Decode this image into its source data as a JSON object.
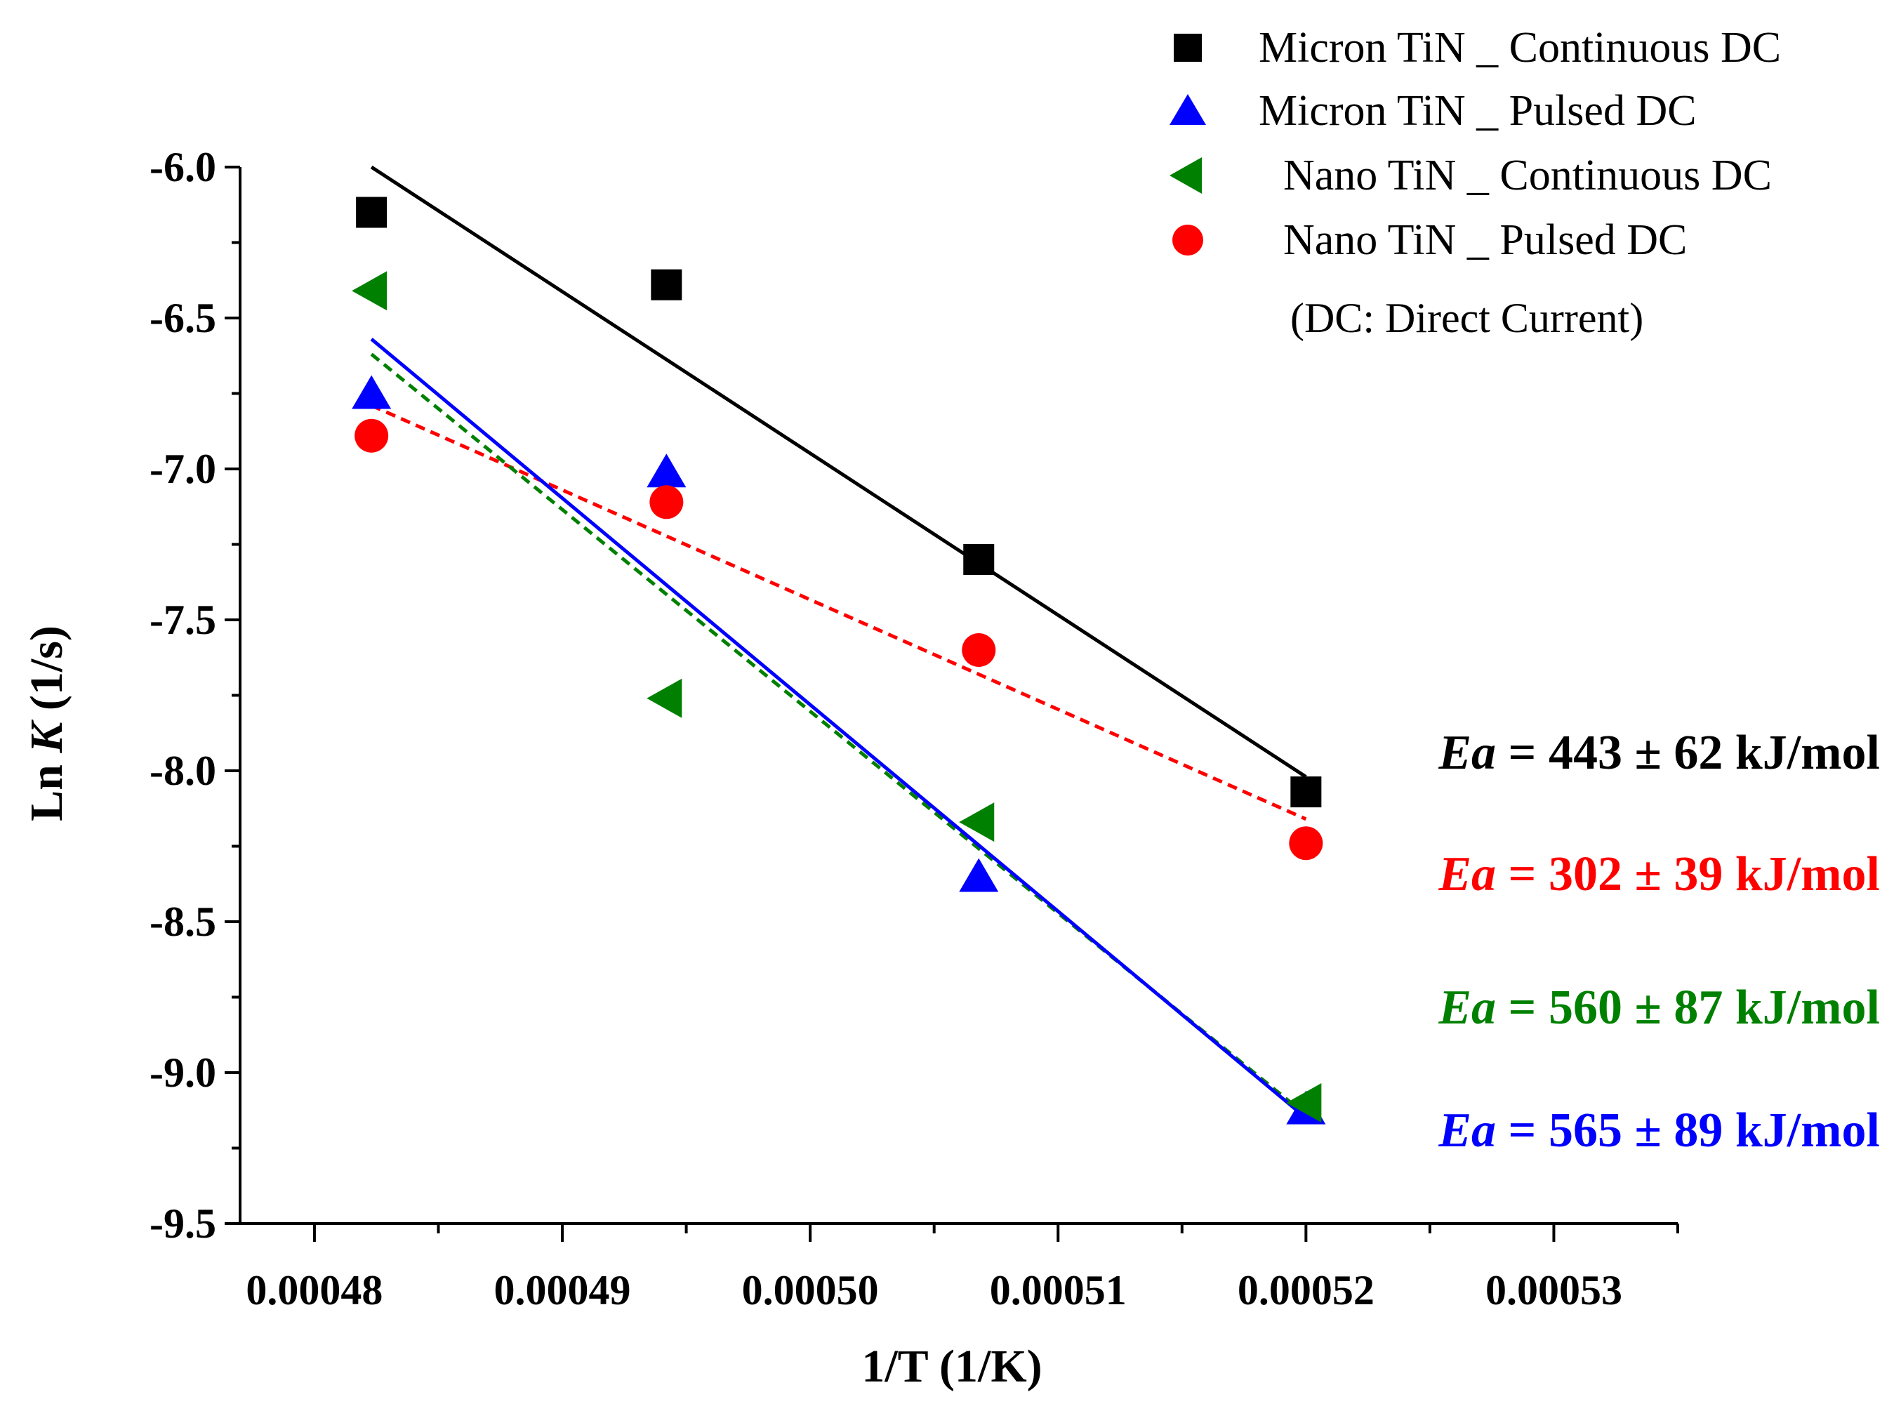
{
  "chart_data": {
    "type": "scatter",
    "title": "",
    "xlabel": "1/T (1/K)",
    "ylabel_plain": "Ln ",
    "ylabel_italic": "K",
    "ylabel_unit": " (1/s)",
    "xlim": [
      0.000477,
      0.000535
    ],
    "ylim": [
      -9.5,
      -6.0
    ],
    "x_ticks": [
      0.00048,
      0.00049,
      0.0005,
      0.00051,
      0.00052,
      0.00053
    ],
    "x_tick_labels": [
      "0.00048",
      "0.00049",
      "0.00050",
      "0.00051",
      "0.00052",
      "0.00053"
    ],
    "y_ticks": [
      -6.0,
      -6.5,
      -7.0,
      -7.5,
      -8.0,
      -8.5,
      -9.0,
      -9.5
    ],
    "y_tick_labels": [
      "-6.0",
      "-6.5",
      "-7.0",
      "-7.5",
      "-8.0",
      "-8.5",
      "-9.0",
      "-9.5"
    ],
    "x": [
      0.0004823,
      0.0004942,
      0.0005068,
      0.00052
    ],
    "series": [
      {
        "name": "Micron TiN _ Continuous DC",
        "marker": "square",
        "color": "#000000",
        "line_style": "solid",
        "values": [
          -6.15,
          -6.39,
          -7.3,
          -8.07
        ],
        "fit": [
          [
            0.0004823,
            -6.0
          ],
          [
            0.00052,
            -8.02
          ]
        ],
        "ea_label": "443 ± 62 kJ/mol"
      },
      {
        "name": "Micron TiN _ Pulsed DC",
        "marker": "triangle-up",
        "color": "#0000ff",
        "line_style": "solid",
        "values": [
          -6.75,
          -7.01,
          -8.35,
          -9.12
        ],
        "fit": [
          [
            0.0004823,
            -6.57
          ],
          [
            0.00052,
            -9.15
          ]
        ],
        "ea_label": "565 ± 89 kJ/mol"
      },
      {
        "name": "Nano TiN _ Continuous DC",
        "marker": "triangle-left",
        "color": "#008000",
        "line_style": "dashed",
        "values": [
          -6.41,
          -7.76,
          -8.17,
          -9.1
        ],
        "fit": [
          [
            0.0004823,
            -6.62
          ],
          [
            0.00052,
            -9.14
          ]
        ],
        "ea_label": "560 ± 87 kJ/mol"
      },
      {
        "name": "Nano TiN _ Pulsed DC",
        "marker": "circle",
        "color": "#ff0000",
        "line_style": "dashed",
        "values": [
          -6.89,
          -7.11,
          -7.6,
          -8.24
        ],
        "fit": [
          [
            0.0004823,
            -6.79
          ],
          [
            0.00052,
            -8.16
          ]
        ],
        "ea_label": "302 ± 39 kJ/mol"
      }
    ],
    "legend_note": "(DC: Direct Current)",
    "legend_position": "top-right",
    "ea_prefix": "Ea",
    "ea_equals": " = ",
    "grid": false
  }
}
